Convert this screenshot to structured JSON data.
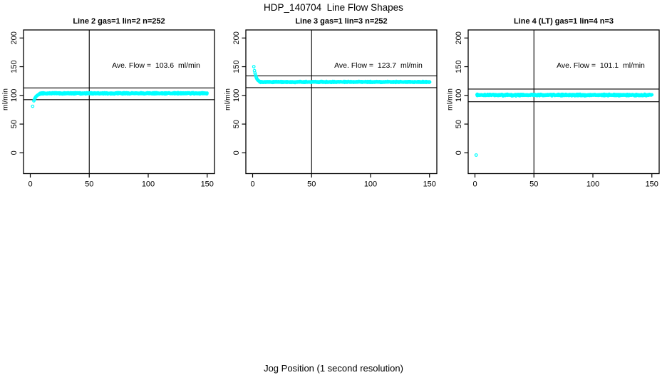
{
  "page_title": "HDP_140704  Line Flow Shapes",
  "xlabel": "Jog Position (1 second resolution)",
  "colors": {
    "points": "#00FFFF",
    "axis": "#000000",
    "background": "#FFFFFF"
  },
  "chart_data": [
    {
      "type": "scatter",
      "title": "Line 2 gas=1 lin=2 n=252",
      "n": 252,
      "ave_flow": 103.6,
      "ave_flow_label": "Ave. Flow =  103.6  ml/min",
      "ylabel": "ml/min",
      "xlim": [
        0,
        152
      ],
      "ylim": [
        -36,
        214
      ],
      "xticks": [
        0,
        50,
        100,
        150
      ],
      "yticks": [
        0,
        50,
        100,
        150,
        200
      ],
      "ref_line_x": 50,
      "ref_lines_y": [
        113,
        92.5
      ],
      "lead_points": [
        [
          2,
          81
        ],
        [
          3,
          90.5
        ],
        [
          3.4,
          92.5
        ],
        [
          3.8,
          94.5
        ],
        [
          4.2,
          96
        ],
        [
          4.6,
          97.3
        ],
        [
          5,
          98.3
        ],
        [
          5.5,
          99.3
        ],
        [
          6,
          100
        ],
        [
          6.5,
          100.7
        ],
        [
          7,
          101.2
        ],
        [
          7.5,
          101.6
        ],
        [
          8,
          102
        ],
        [
          9,
          102.5
        ],
        [
          10,
          102.9
        ],
        [
          11,
          103.1
        ],
        [
          12,
          103.3
        ],
        [
          13,
          103.4
        ],
        [
          14,
          103.5
        ]
      ],
      "band": {
        "x_start": 8,
        "x_end": 150,
        "y": 103.6,
        "noise": 1.3,
        "points": 500,
        "seed": 7
      },
      "outliers": []
    },
    {
      "type": "scatter",
      "title": "Line 3 gas=1 lin=3 n=252",
      "n": 252,
      "ave_flow": 123.7,
      "ave_flow_label": "Ave. Flow =  123.7  ml/min",
      "ylabel": "ml/min",
      "xlim": [
        0,
        152
      ],
      "ylim": [
        -36,
        214
      ],
      "xticks": [
        0,
        50,
        100,
        150
      ],
      "yticks": [
        0,
        50,
        100,
        150,
        200
      ],
      "ref_line_x": 50,
      "ref_lines_y": [
        134,
        113.5
      ],
      "lead_points": [
        [
          1,
          150
        ],
        [
          1.6,
          143
        ],
        [
          2,
          139
        ],
        [
          2.4,
          135.8
        ],
        [
          2.8,
          133
        ],
        [
          3.2,
          130.8
        ],
        [
          3.6,
          129
        ],
        [
          4,
          127.6
        ],
        [
          4.5,
          126.4
        ],
        [
          5,
          125.5
        ],
        [
          5.5,
          124.9
        ],
        [
          6,
          124.4
        ],
        [
          6.5,
          124.1
        ],
        [
          7,
          123.9
        ],
        [
          8,
          123.6
        ],
        [
          9,
          123.5
        ],
        [
          10,
          123.4
        ]
      ],
      "band": {
        "x_start": 6,
        "x_end": 150,
        "y": 123.4,
        "noise": 1.2,
        "points": 500,
        "seed": 13
      },
      "outliers": []
    },
    {
      "type": "scatter",
      "title": "Line 4 (LT) gas=1 lin=4 n=3",
      "n": 3,
      "ave_flow": 101.1,
      "ave_flow_label": "Ave. Flow =  101.1  ml/min",
      "ylabel": "ml/min",
      "xlim": [
        0,
        152
      ],
      "ylim": [
        -36,
        214
      ],
      "xticks": [
        0,
        50,
        100,
        150
      ],
      "yticks": [
        0,
        50,
        100,
        150,
        200
      ],
      "ref_line_x": 50,
      "ref_lines_y": [
        111,
        89
      ],
      "lead_points": [],
      "band": {
        "x_start": 1.5,
        "x_end": 150,
        "y": 100.6,
        "noise": 1.6,
        "points": 450,
        "seed": 29
      },
      "outliers": [
        [
          1,
          -4
        ]
      ]
    }
  ]
}
